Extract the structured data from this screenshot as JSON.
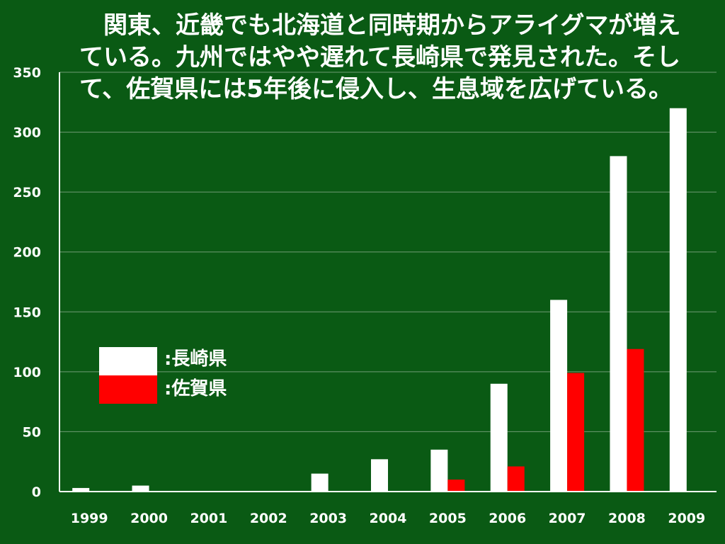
{
  "slide": {
    "headline": "　関東、近畿でも北海道と同時期からアライグマが増えている。九州ではやや遅れて長崎県で発見された。そして、佐賀県には5年後に侵入し、生息域を広げている。"
  },
  "colors": {
    "background": "#0a5a14",
    "gridline": "#6f9a73",
    "axis": "#ffffff",
    "text": "#ffffff"
  },
  "chart_data": {
    "type": "bar",
    "title": "",
    "xlabel": "",
    "ylabel": "",
    "categories": [
      "1999",
      "2000",
      "2001",
      "2002",
      "2003",
      "2004",
      "2005",
      "2006",
      "2007",
      "2008",
      "2009"
    ],
    "series": [
      {
        "name": ":長崎県",
        "color": "#ffffff",
        "values": [
          3,
          5,
          0,
          0,
          15,
          27,
          35,
          90,
          160,
          280,
          320
        ]
      },
      {
        "name": ":佐賀県",
        "color": "#ff0000",
        "values": [
          0,
          0,
          0,
          0,
          0,
          0,
          10,
          21,
          99,
          119,
          0
        ]
      }
    ],
    "ylim": [
      0,
      350
    ],
    "yticks": [
      "0",
      "50",
      "100",
      "150",
      "200",
      "250",
      "300",
      "350"
    ],
    "grid": true,
    "legend_position": "middle-left"
  }
}
